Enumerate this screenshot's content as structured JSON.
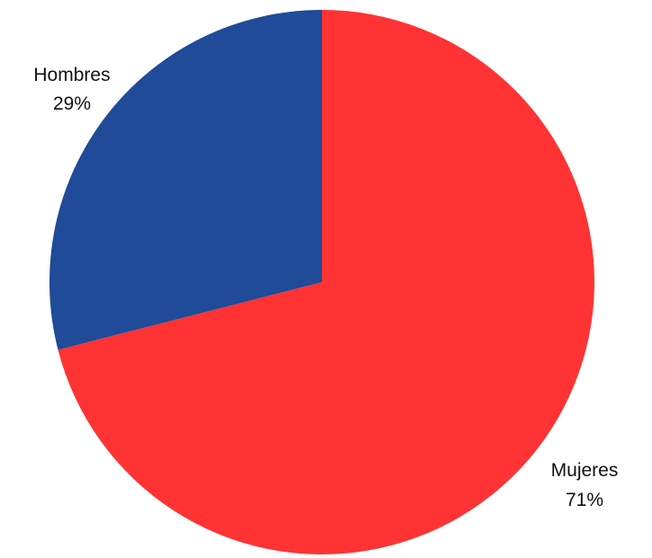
{
  "chart_data": {
    "type": "pie",
    "title": "",
    "slices": [
      {
        "label": "Mujeres",
        "value": 71,
        "value_label": "71%",
        "color": "#ff3333"
      },
      {
        "label": "Hombres",
        "value": 29,
        "value_label": "29%",
        "color": "#1f4b99"
      }
    ],
    "start": "12 o'clock",
    "direction": "clockwise",
    "legend": "none"
  }
}
